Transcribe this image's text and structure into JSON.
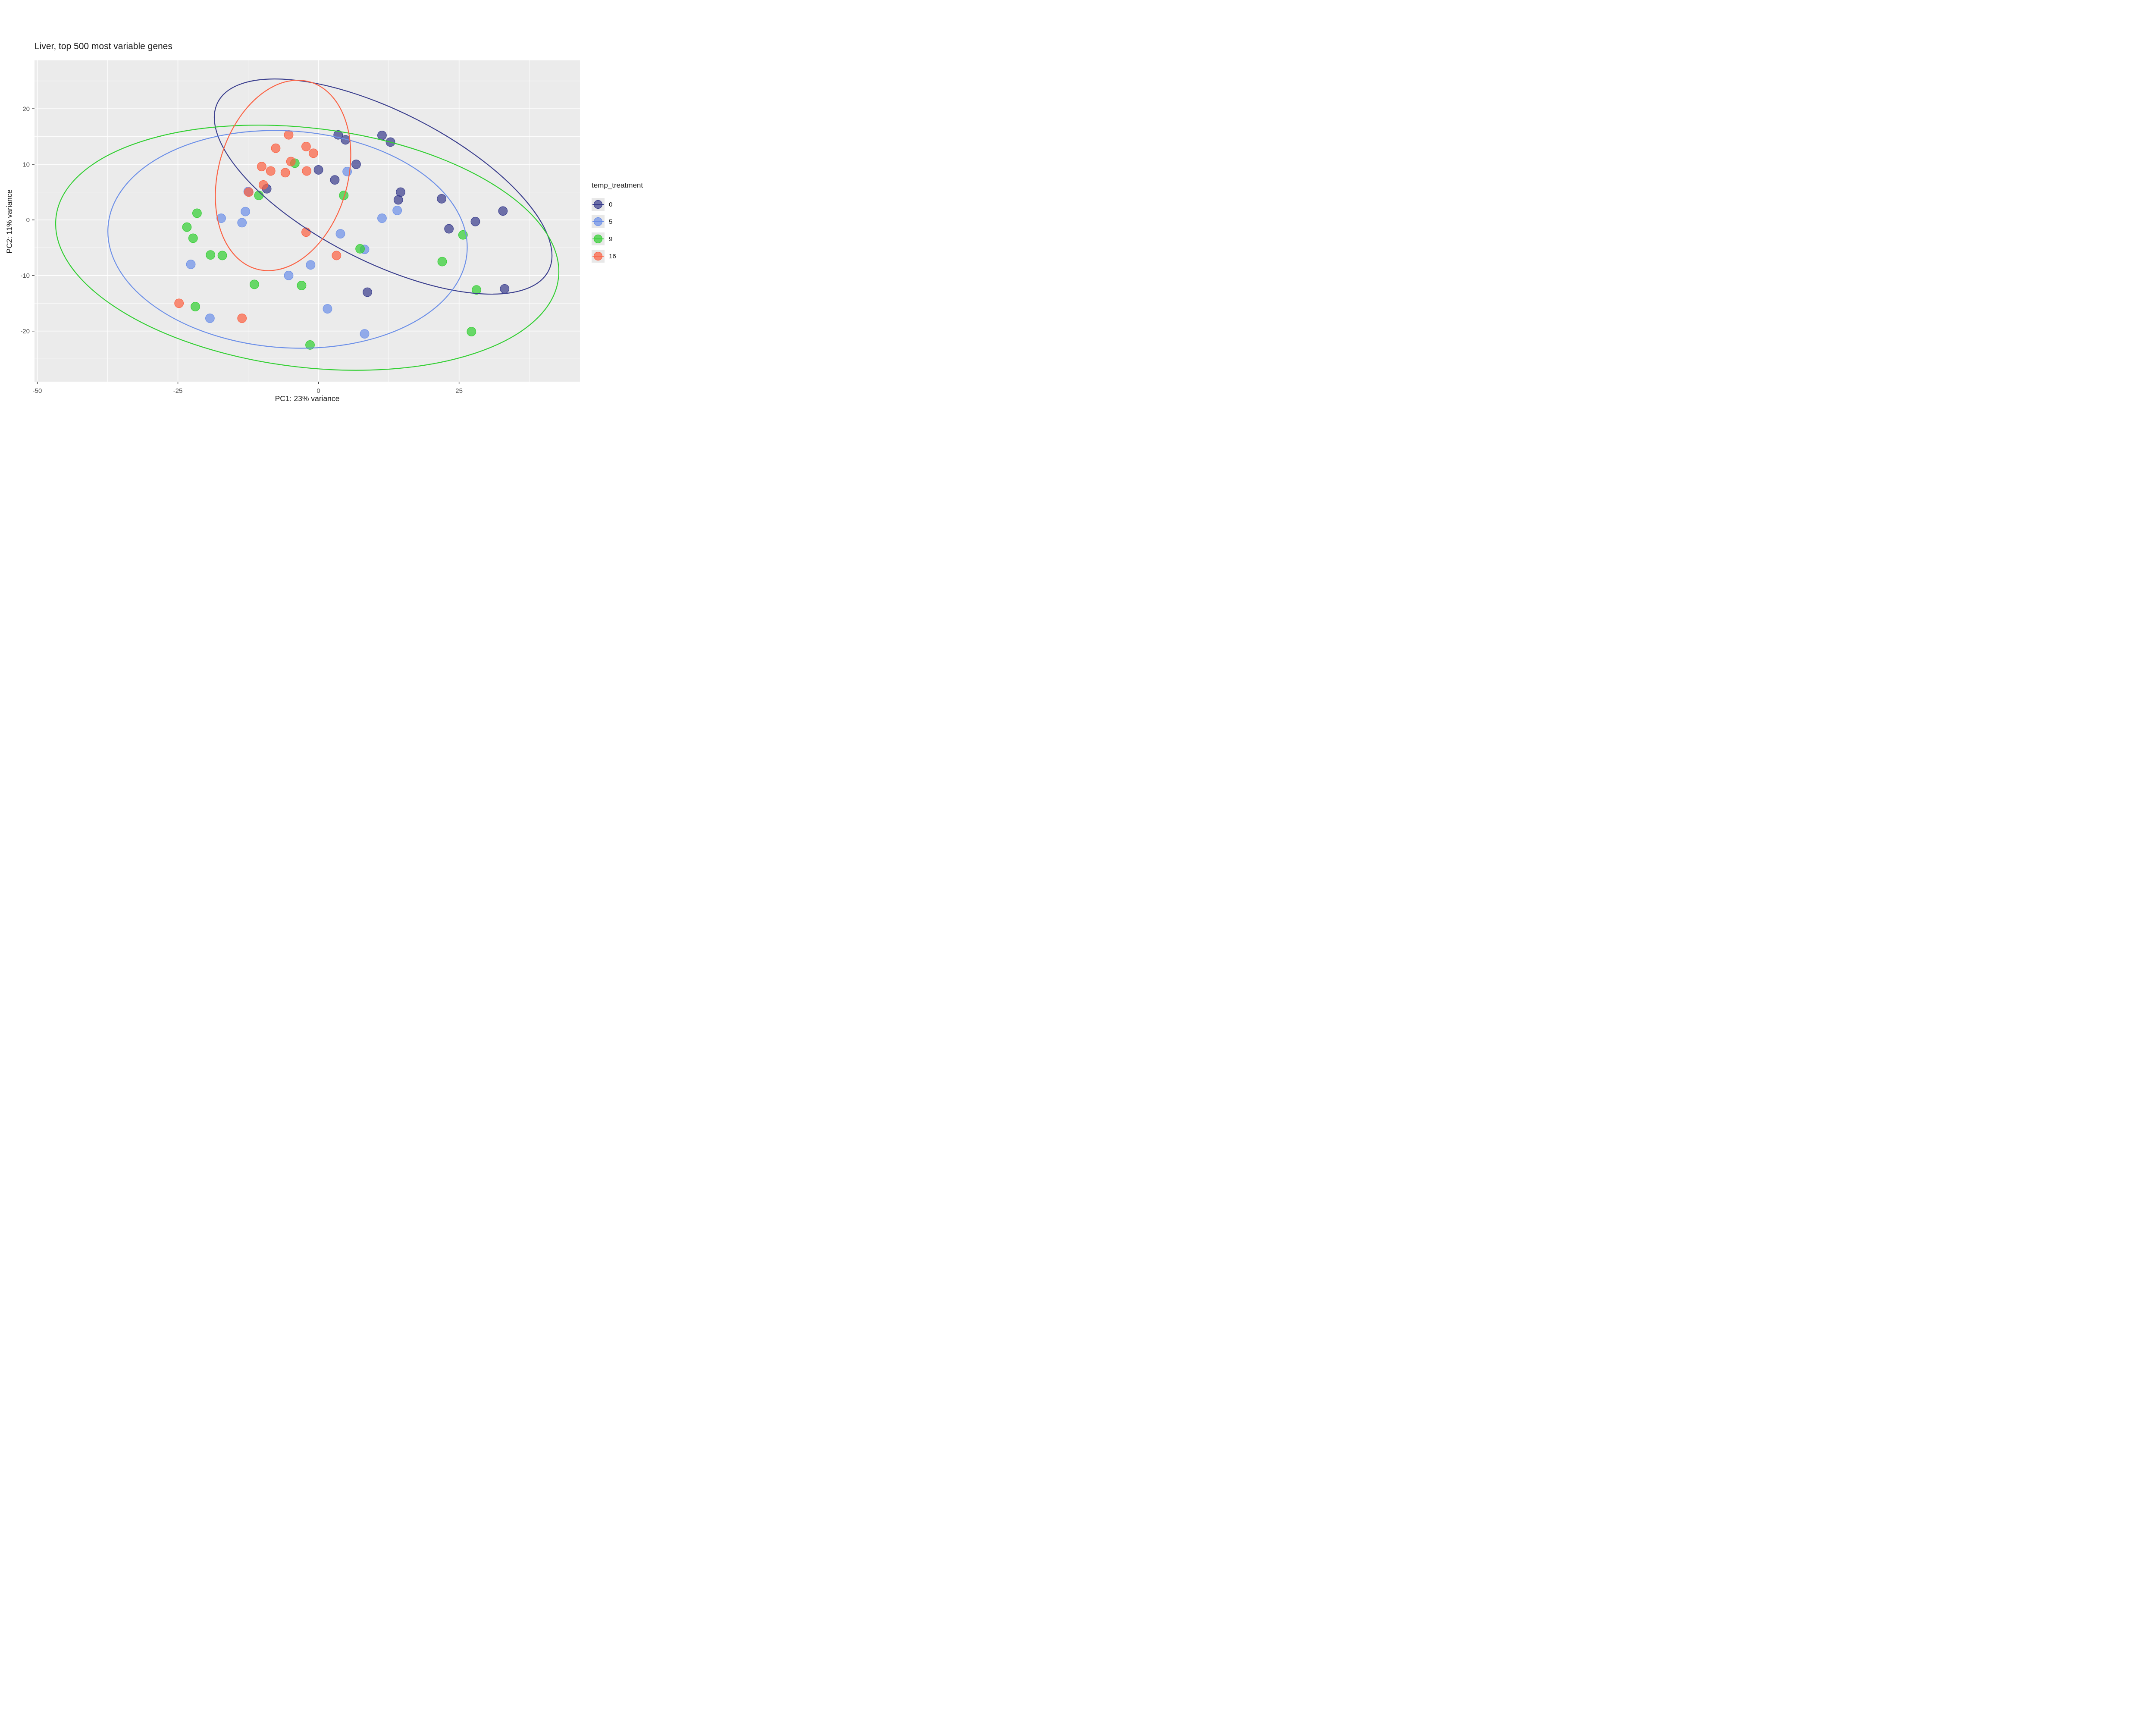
{
  "chart_data": {
    "type": "scatter",
    "title": "Liver, top 500 most variable genes",
    "xlabel": "PC1: 23% variance",
    "ylabel": "PC2: 11% variance",
    "xlim": [
      -50.5,
      46.5
    ],
    "ylim": [
      -29.1,
      28.7
    ],
    "x_ticks": [
      -50,
      -25,
      0,
      25
    ],
    "y_ticks": [
      -20,
      -10,
      0,
      10,
      20
    ],
    "x_minor_ticks": [
      -37.5,
      -12.5,
      12.5,
      37.5
    ],
    "y_minor_ticks": [
      -25,
      -15,
      -5,
      5,
      15,
      25
    ],
    "grid": true,
    "panel_bg": "#EBEBEB",
    "grid_color": "#FFFFFF",
    "tick_label_color": "#4D4D4D",
    "tick_mark_color": "#333333",
    "legend_key_bg": "#E8E8E8",
    "legend": {
      "title": "temp_treatment",
      "position": "right"
    },
    "series": [
      {
        "name": "0",
        "color": "#3B3F8E",
        "points": [
          [
            3.5,
            15.3
          ],
          [
            4.8,
            14.4
          ],
          [
            11.3,
            15.2
          ],
          [
            12.8,
            14.0
          ],
          [
            6.7,
            10.0
          ],
          [
            0.0,
            9.0
          ],
          [
            2.9,
            7.2
          ],
          [
            -9.2,
            5.6
          ],
          [
            14.6,
            5.0
          ],
          [
            14.2,
            3.6
          ],
          [
            21.9,
            3.8
          ],
          [
            32.8,
            1.6
          ],
          [
            27.9,
            -0.3
          ],
          [
            23.2,
            -1.6
          ],
          [
            8.7,
            -13.0
          ],
          [
            33.1,
            -12.4
          ]
        ],
        "ellipse": {
          "cx": 11.5,
          "cy": 6.0,
          "rx": 33.0,
          "ry": 13.5,
          "angle": -27
        }
      },
      {
        "name": "5",
        "color": "#6D90E8",
        "points": [
          [
            5.1,
            8.7
          ],
          [
            -12.5,
            5.1
          ],
          [
            -13.0,
            1.5
          ],
          [
            -17.3,
            0.3
          ],
          [
            -13.6,
            -0.5
          ],
          [
            14.0,
            1.7
          ],
          [
            11.3,
            0.3
          ],
          [
            3.9,
            -2.5
          ],
          [
            8.2,
            -5.3
          ],
          [
            -22.7,
            -8.0
          ],
          [
            -1.4,
            -8.1
          ],
          [
            -5.3,
            -10.0
          ],
          [
            1.6,
            -16.0
          ],
          [
            -19.3,
            -17.7
          ],
          [
            8.2,
            -20.5
          ]
        ],
        "ellipse": {
          "cx": -5.5,
          "cy": -3.5,
          "rx": 32.0,
          "ry": 19.5,
          "angle": -4
        }
      },
      {
        "name": "9",
        "color": "#33CF33",
        "points": [
          [
            -4.2,
            10.2
          ],
          [
            -10.6,
            4.4
          ],
          [
            4.5,
            4.4
          ],
          [
            -21.6,
            1.2
          ],
          [
            -23.4,
            -1.3
          ],
          [
            -22.3,
            -3.3
          ],
          [
            -19.2,
            -6.3
          ],
          [
            -17.1,
            -6.4
          ],
          [
            7.4,
            -5.2
          ],
          [
            25.7,
            -2.7
          ],
          [
            22.0,
            -7.5
          ],
          [
            -11.4,
            -11.6
          ],
          [
            -3.0,
            -11.8
          ],
          [
            28.1,
            -12.6
          ],
          [
            -21.9,
            -15.6
          ],
          [
            27.2,
            -20.1
          ],
          [
            -1.5,
            -22.5
          ]
        ],
        "ellipse": {
          "cx": -2.0,
          "cy": -5.0,
          "rx": 45.0,
          "ry": 21.5,
          "angle": -7
        }
      },
      {
        "name": "16",
        "color": "#FB6244",
        "points": [
          [
            -5.3,
            15.3
          ],
          [
            -7.6,
            12.9
          ],
          [
            -2.2,
            13.2
          ],
          [
            -0.9,
            12.0
          ],
          [
            -4.9,
            10.5
          ],
          [
            -10.1,
            9.6
          ],
          [
            -8.5,
            8.8
          ],
          [
            -5.9,
            8.5
          ],
          [
            -2.1,
            8.8
          ],
          [
            -9.8,
            6.3
          ],
          [
            -12.4,
            5.0
          ],
          [
            -2.2,
            -2.2
          ],
          [
            3.2,
            -6.4
          ],
          [
            -24.8,
            -15.0
          ],
          [
            -13.6,
            -17.7
          ]
        ],
        "ellipse": {
          "cx": -6.3,
          "cy": 8.0,
          "rx": 11.5,
          "ry": 17.5,
          "angle": -16
        }
      }
    ]
  }
}
